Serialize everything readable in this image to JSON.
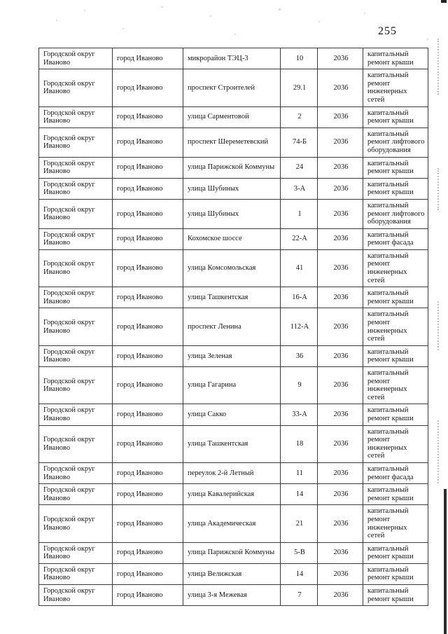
{
  "page": {
    "number": "255"
  },
  "table": {
    "rows": [
      {
        "district": "Городской округ Иваново",
        "city": "город Иваново",
        "street": "микрорайон ТЭЦ-3",
        "house": "10",
        "year": "2036",
        "work": "капитальный ремонт крыши"
      },
      {
        "district": "Городской округ Иваново",
        "city": "город Иваново",
        "street": "проспект Строителей",
        "house": "29.1",
        "year": "2036",
        "work": "капитальный ремонт инженерных сетей"
      },
      {
        "district": "Городской округ Иваново",
        "city": "город Иваново",
        "street": "улица Сарментовой",
        "house": "2",
        "year": "2036",
        "work": "капитальный ремонт крыши"
      },
      {
        "district": "Городской округ Иваново",
        "city": "город Иваново",
        "street": "проспект Шереметевский",
        "house": "74-Б",
        "year": "2036",
        "work": "капитальный ремонт лифтового оборудования"
      },
      {
        "district": "Городской округ Иваново",
        "city": "город Иваново",
        "street": "улица Парижской Коммуны",
        "house": "24",
        "year": "2036",
        "work": "капитальный ремонт крыши"
      },
      {
        "district": "Городской округ Иваново",
        "city": "город Иваново",
        "street": "улица Шубиных",
        "house": "3-А",
        "year": "2036",
        "work": "капитальный ремонт крыши"
      },
      {
        "district": "Городской округ Иваново",
        "city": "город Иваново",
        "street": "улица Шубиных",
        "house": "1",
        "year": "2036",
        "work": "капитальный ремонт лифтового оборудования"
      },
      {
        "district": "Городской округ Иваново",
        "city": "город Иваново",
        "street": "Кохомское шоссе",
        "house": "22-А",
        "year": "2036",
        "work": "капитальный ремонт фасада"
      },
      {
        "district": "Городской округ Иваново",
        "city": "город Иваново",
        "street": "улица Комсомольская",
        "house": "41",
        "year": "2036",
        "work": "капитальный ремонт инженерных сетей"
      },
      {
        "district": "Городской округ Иваново",
        "city": "город Иваново",
        "street": "улица Ташкентская",
        "house": "16-А",
        "year": "2036",
        "work": "капитальный ремонт крыши"
      },
      {
        "district": "Городской округ Иваново",
        "city": "город Иваново",
        "street": "проспект Ленина",
        "house": "112-А",
        "year": "2036",
        "work": "капитальный ремонт инженерных сетей"
      },
      {
        "district": "Городской округ Иваново",
        "city": "город Иваново",
        "street": "улица Зеленая",
        "house": "36",
        "year": "2036",
        "work": "капитальный ремонт крыши"
      },
      {
        "district": "Городской округ Иваново",
        "city": "город Иваново",
        "street": "улица Гагарина",
        "house": "9",
        "year": "2036",
        "work": "капитальный ремонт инженерных сетей"
      },
      {
        "district": "Городской округ Иваново",
        "city": "город Иваново",
        "street": "улица Сакко",
        "house": "33-А",
        "year": "2036",
        "work": "капитальный ремонт крыши"
      },
      {
        "district": "Городской округ Иваново",
        "city": "город Иваново",
        "street": "улица Ташкентская",
        "house": "18",
        "year": "2036",
        "work": "капитальный ремонт инженерных сетей"
      },
      {
        "district": "Городской округ Иваново",
        "city": "город Иваново",
        "street": "переулок 2-й Летный",
        "house": "11",
        "year": "2036",
        "work": "капитальный ремонт фасада"
      },
      {
        "district": "Городской округ Иваново",
        "city": "город Иваново",
        "street": "улица Кавалерийская",
        "house": "14",
        "year": "2036",
        "work": "капитальный ремонт крыши"
      },
      {
        "district": "Городской округ Иваново",
        "city": "город Иваново",
        "street": "улица Академическая",
        "house": "21",
        "year": "2036",
        "work": "капитальный ремонт инженерных сетей"
      },
      {
        "district": "Городской округ Иваново",
        "city": "город Иваново",
        "street": "улица Парижской Коммуны",
        "house": "5-В",
        "year": "2036",
        "work": "капитальный ремонт крыши"
      },
      {
        "district": "Городской округ Иваново",
        "city": "город Иваново",
        "street": "улица Велижская",
        "house": "14",
        "year": "2036",
        "work": "капитальный ремонт крыши"
      },
      {
        "district": "Городской округ Иваново",
        "city": "город Иваново",
        "street": "улица 3-я Межевая",
        "house": "7",
        "year": "2036",
        "work": "капитальный ремонт крыши"
      }
    ]
  }
}
